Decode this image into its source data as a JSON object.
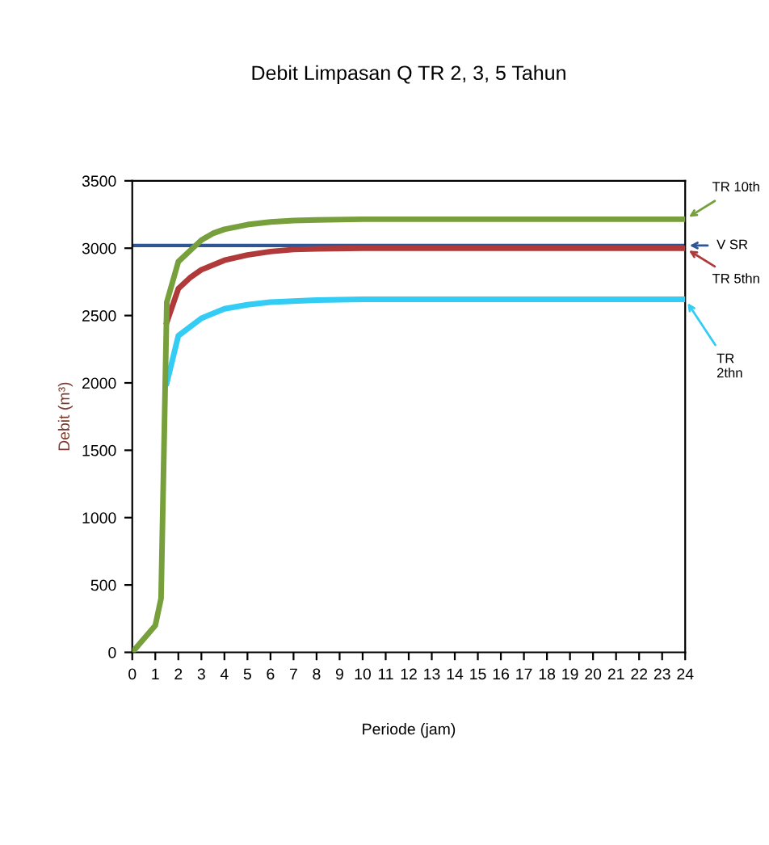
{
  "chart_data": {
    "type": "line",
    "title": "Debit Limpasan Q TR 2, 3, 5 Tahun",
    "xlabel": "Periode (jam)",
    "ylabel": "Debit (m³)",
    "xlim": [
      0,
      24
    ],
    "xticks": [
      0,
      1,
      2,
      3,
      4,
      5,
      6,
      7,
      8,
      9,
      10,
      11,
      12,
      13,
      14,
      15,
      16,
      17,
      18,
      19,
      20,
      21,
      22,
      23,
      24
    ],
    "ylim": [
      0,
      3500
    ],
    "yticks": [
      0,
      500,
      1000,
      1500,
      2000,
      2500,
      3000,
      3500
    ],
    "grid": false,
    "legend": false,
    "marker": "none",
    "line_style": "solid",
    "series": [
      {
        "name": "TR 10th",
        "color": "#77a03c",
        "x": [
          0,
          1,
          1.25,
          1.5,
          2,
          2.5,
          3,
          3.5,
          4,
          5,
          6,
          7,
          8,
          10,
          24
        ],
        "values": [
          0,
          200,
          400,
          2600,
          2900,
          2980,
          3060,
          3110,
          3140,
          3175,
          3195,
          3205,
          3210,
          3215,
          3215
        ]
      },
      {
        "name": "TR 5thn",
        "color": "#b03a3a",
        "x": [
          1.5,
          2,
          2.5,
          3,
          4,
          5,
          6,
          7,
          8,
          10,
          24
        ],
        "values": [
          2450,
          2700,
          2780,
          2840,
          2910,
          2950,
          2975,
          2990,
          2995,
          3000,
          3000
        ]
      },
      {
        "name": "TR\n2thn",
        "color": "#33ccf5",
        "x": [
          1.5,
          2,
          3,
          4,
          5,
          6,
          8,
          10,
          24
        ],
        "values": [
          2000,
          2350,
          2480,
          2550,
          2580,
          2600,
          2615,
          2620,
          2620
        ]
      }
    ],
    "ref_lines": [
      {
        "axis": "y",
        "value": 3020,
        "label": "V SR",
        "color": "#2f5597",
        "line_style": "solid"
      }
    ]
  }
}
